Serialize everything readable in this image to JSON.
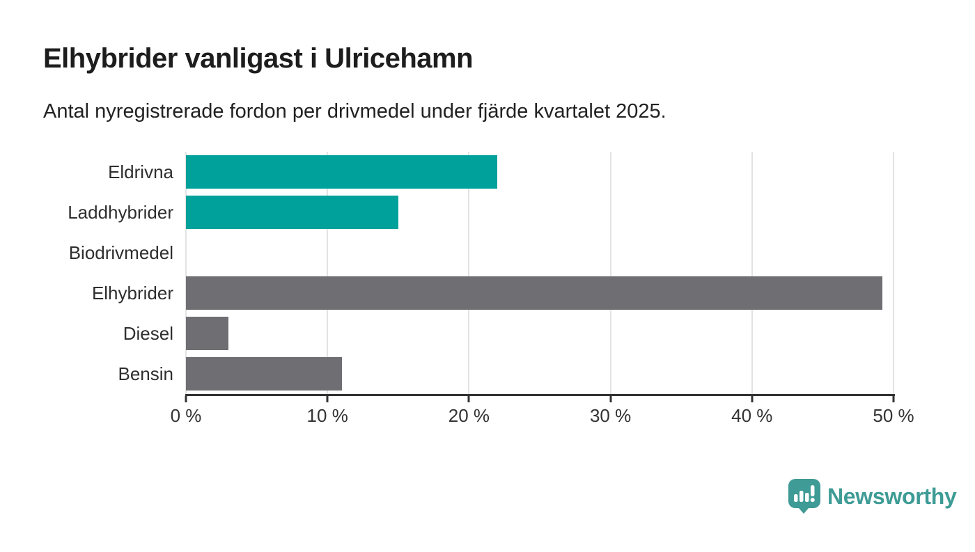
{
  "header": {
    "title": "Elhybrider vanligast i Ulricehamn",
    "subtitle": "Antal nyregistrerade fordon per drivmedel under fjärde kvartalet 2025."
  },
  "chart_data": {
    "type": "bar",
    "orientation": "horizontal",
    "title": "Elhybrider vanligast i Ulricehamn",
    "subtitle": "Antal nyregistrerade fordon per drivmedel under fjärde kvartalet 2025.",
    "categories": [
      "Eldrivna",
      "Laddhybrider",
      "Biodrivmedel",
      "Elhybrider",
      "Diesel",
      "Bensin"
    ],
    "values": [
      22,
      15,
      0,
      49.2,
      3,
      11
    ],
    "unit": "%",
    "bar_colors": [
      "#00a19a",
      "#00a19a",
      "#6e6e73",
      "#6e6e73",
      "#6e6e73",
      "#6e6e73"
    ],
    "xlim": [
      0,
      50
    ],
    "x_tick_values": [
      0,
      10,
      20,
      30,
      40,
      50
    ],
    "x_tick_labels": [
      "0 %",
      "10 %",
      "20 %",
      "30 %",
      "40 %",
      "50 %"
    ],
    "xlabel": "",
    "ylabel": "",
    "grid": true,
    "legend": false
  },
  "footer": {
    "brand": "Newsworthy",
    "logo_icon": "speech-bubble-bar-chart-icon"
  },
  "colors": {
    "accent_teal": "#00a19a",
    "bar_gray": "#6e6e73",
    "gridline": "#e3e3e4",
    "axis": "#333333",
    "text": "#2e2e2e",
    "logo_teal": "#3e9b95"
  }
}
